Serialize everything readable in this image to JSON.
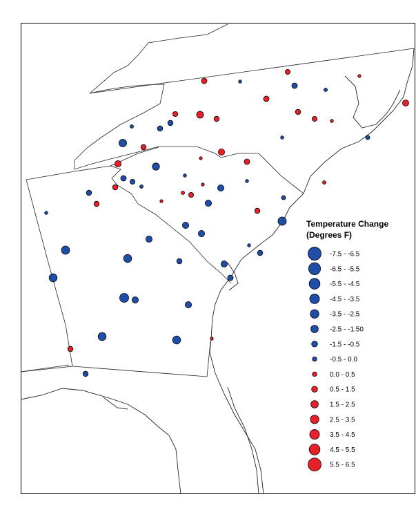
{
  "legend": {
    "title_line1": "Temperature Change",
    "title_line2": "(Degrees F)",
    "classes": [
      {
        "label": "-7.5 - -6.5",
        "color": "#1f4ea8",
        "size": 7
      },
      {
        "label": "-6.5 - -5.5",
        "color": "#1f4ea8",
        "size": 6.4
      },
      {
        "label": "-5.5 - -4.5",
        "color": "#1f4ea8",
        "size": 5.8
      },
      {
        "label": "-4.5 - -3.5",
        "color": "#1f4ea8",
        "size": 5.2
      },
      {
        "label": "-3.5 - -2.5",
        "color": "#1f4ea8",
        "size": 4.6
      },
      {
        "label": "-2.5 - -1.50",
        "color": "#1f4ea8",
        "size": 4
      },
      {
        "label": "-1.5 - -0.5",
        "color": "#1f4ea8",
        "size": 3.2
      },
      {
        "label": "-0.5 - 0.0",
        "color": "#1f4ea8",
        "size": 2.4
      },
      {
        "label": "0.0 - 0.5",
        "color": "#e8202a",
        "size": 2.4
      },
      {
        "label": "0.5 - 1.5",
        "color": "#e8202a",
        "size": 3.2
      },
      {
        "label": "1.5 - 2.5",
        "color": "#e8202a",
        "size": 4
      },
      {
        "label": "2.5 - 3.5",
        "color": "#e8202a",
        "size": 4.6
      },
      {
        "label": "3.5 - 4.5",
        "color": "#e8202a",
        "size": 5.2
      },
      {
        "label": "4.5 - 5.5",
        "color": "#e8202a",
        "size": 5.8
      },
      {
        "label": "5.5 - 6.5",
        "color": "#e8202a",
        "size": 7
      }
    ]
  },
  "colors": {
    "cooling": "#1f4ea8",
    "warming": "#e8202a",
    "outline": "#000000"
  }
}
